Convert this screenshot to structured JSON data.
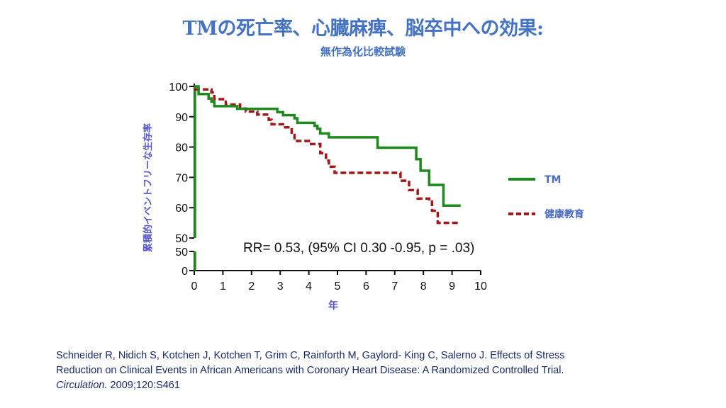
{
  "title": "TMの死亡率、心臓麻痺、脳卒中への効果:",
  "subtitle": "無作為化比較試験",
  "citation": {
    "line1": "Schneider R, Nidich S, Kotchen J, Kotchen T, Grim C, Rainforth M, Gaylord- King C, Salerno J. Effects of Stress",
    "line2": "Reduction on Clinical Events in African Americans with Coronary Heart Disease: A Randomized Controlled Trial.",
    "journal": "Circulation.",
    "ref": " 2009;120:S461"
  },
  "chart_data": {
    "type": "line",
    "subtype": "kaplan-meier step",
    "xlabel": "年",
    "ylabel": "累積的イベントフリーな生存率",
    "xlim": [
      0,
      10
    ],
    "ylim_upper": [
      50,
      100
    ],
    "ylim_lower": [
      0,
      50
    ],
    "broken_y_axis": true,
    "x_ticks": [
      "0",
      "1",
      "2",
      "3",
      "4",
      "5",
      "6",
      "7",
      "8",
      "9",
      "10"
    ],
    "y_ticks_upper": [
      "100",
      "90",
      "80",
      "70",
      "60",
      "50"
    ],
    "y_ticks_lower": [
      "50",
      "0"
    ],
    "grid": false,
    "legend_position": "right",
    "annotation": "RR= 0.53,  (95% CI 0.30 -0.95, p = .03)",
    "series": [
      {
        "name": "TM",
        "color": "#1e8a1e",
        "style": "solid",
        "points": [
          [
            0,
            100
          ],
          [
            0.15,
            97.5
          ],
          [
            0.5,
            96
          ],
          [
            0.6,
            95
          ],
          [
            0.7,
            93.5
          ],
          [
            1.5,
            92.6
          ],
          [
            2.9,
            91.5
          ],
          [
            3.1,
            90.5
          ],
          [
            3.5,
            89.5
          ],
          [
            3.6,
            88
          ],
          [
            4.2,
            87
          ],
          [
            4.3,
            86
          ],
          [
            4.4,
            84.5
          ],
          [
            4.7,
            83.2
          ],
          [
            6.4,
            79.8
          ],
          [
            7.75,
            76
          ],
          [
            7.9,
            72.2
          ],
          [
            8.2,
            67.5
          ],
          [
            8.7,
            60.7
          ],
          [
            9.3,
            60.7
          ]
        ]
      },
      {
        "name": "健康教育",
        "color": "#a01818",
        "style": "dashed",
        "points": [
          [
            0,
            99
          ],
          [
            0.6,
            98
          ],
          [
            0.7,
            95.8
          ],
          [
            1.1,
            94
          ],
          [
            1.6,
            92.7
          ],
          [
            1.8,
            91.7
          ],
          [
            2.2,
            90.7
          ],
          [
            2.6,
            89
          ],
          [
            2.7,
            87.5
          ],
          [
            3.1,
            86.5
          ],
          [
            3.4,
            84
          ],
          [
            3.5,
            82
          ],
          [
            4.0,
            81
          ],
          [
            4.4,
            78
          ],
          [
            4.6,
            75.5
          ],
          [
            4.7,
            73.5
          ],
          [
            4.9,
            71.5
          ],
          [
            7.2,
            68.9
          ],
          [
            7.5,
            65.8
          ],
          [
            7.8,
            63
          ],
          [
            8.2,
            62
          ],
          [
            8.3,
            59
          ],
          [
            8.5,
            55
          ],
          [
            9.3,
            55
          ]
        ]
      }
    ]
  }
}
